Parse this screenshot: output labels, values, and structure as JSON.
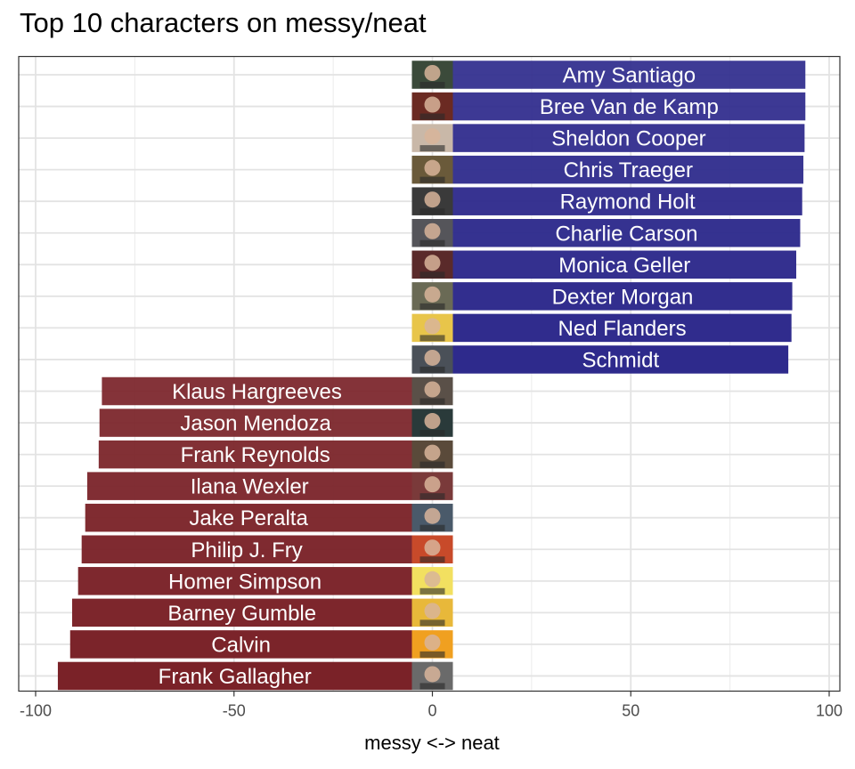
{
  "chart_data": {
    "type": "bar",
    "orientation": "horizontal",
    "title": "Top 10 characters on messy/neat",
    "xlabel": "messy <-> neat",
    "ylabel": "",
    "xlim": [
      -100,
      100
    ],
    "x_ticks": [
      -100,
      -50,
      0,
      50,
      100
    ],
    "grid": true,
    "series": [
      {
        "color": "#2e2a8c",
        "points": [
          {
            "label": "Amy Santiago",
            "value": 94
          },
          {
            "label": "Bree Van de Kamp",
            "value": 94
          },
          {
            "label": "Sheldon Cooper",
            "value": 93.8
          },
          {
            "label": "Chris Traeger",
            "value": 93.5
          },
          {
            "label": "Raymond Holt",
            "value": 93.2
          },
          {
            "label": "Charlie Carson",
            "value": 92.7
          },
          {
            "label": "Monica Geller",
            "value": 91.7
          },
          {
            "label": "Dexter Morgan",
            "value": 90.7
          },
          {
            "label": "Ned Flanders",
            "value": 90.5
          },
          {
            "label": "Schmidt",
            "value": 89.7
          }
        ]
      },
      {
        "color": "#7a2228",
        "points": [
          {
            "label": "Klaus Hargreeves",
            "value": -83.3
          },
          {
            "label": "Jason Mendoza",
            "value": -83.9
          },
          {
            "label": "Frank Reynolds",
            "value": -84.1
          },
          {
            "label": "Ilana Wexler",
            "value": -87
          },
          {
            "label": "Jake Peralta",
            "value": -87.5
          },
          {
            "label": "Philip J. Fry",
            "value": -88.4
          },
          {
            "label": "Homer Simpson",
            "value": -89.3
          },
          {
            "label": "Barney Gumble",
            "value": -90.8
          },
          {
            "label": "Calvin",
            "value": -91.3
          },
          {
            "label": "Frank Gallagher",
            "value": -94.4
          }
        ]
      }
    ]
  }
}
